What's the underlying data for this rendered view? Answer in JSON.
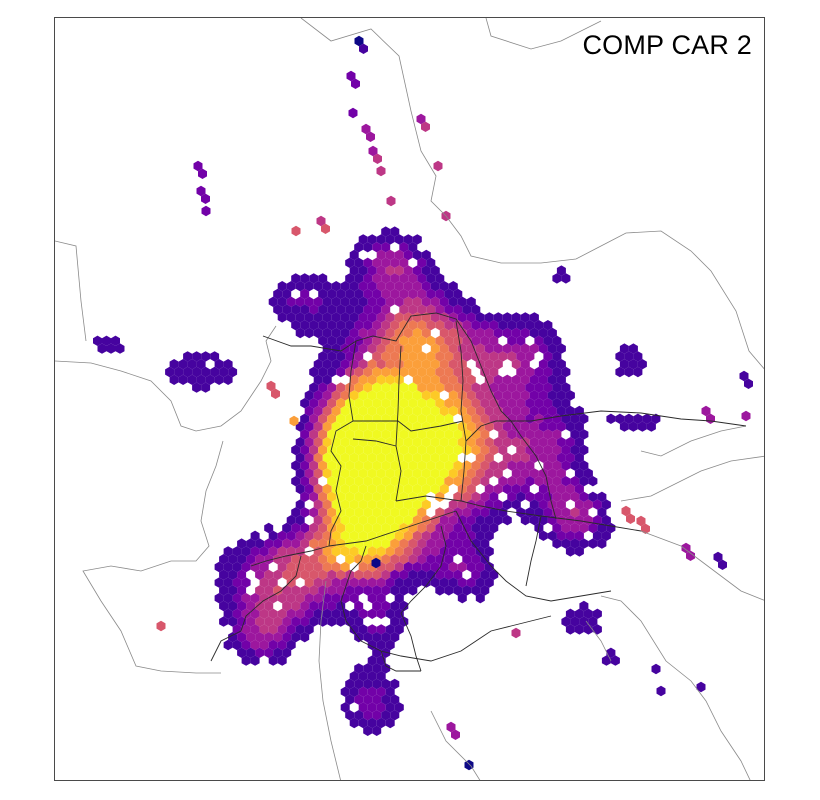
{
  "title": "COMP CAR 2",
  "colors": {
    "scale": [
      "#0d0887",
      "#46039f",
      "#7201a8",
      "#9c179e",
      "#bd3786",
      "#d8576b",
      "#ed7953",
      "#fb9f3a",
      "#fdca26",
      "#f0f921"
    ],
    "boundary_line": "#777777",
    "district_line": "#222222"
  }
}
